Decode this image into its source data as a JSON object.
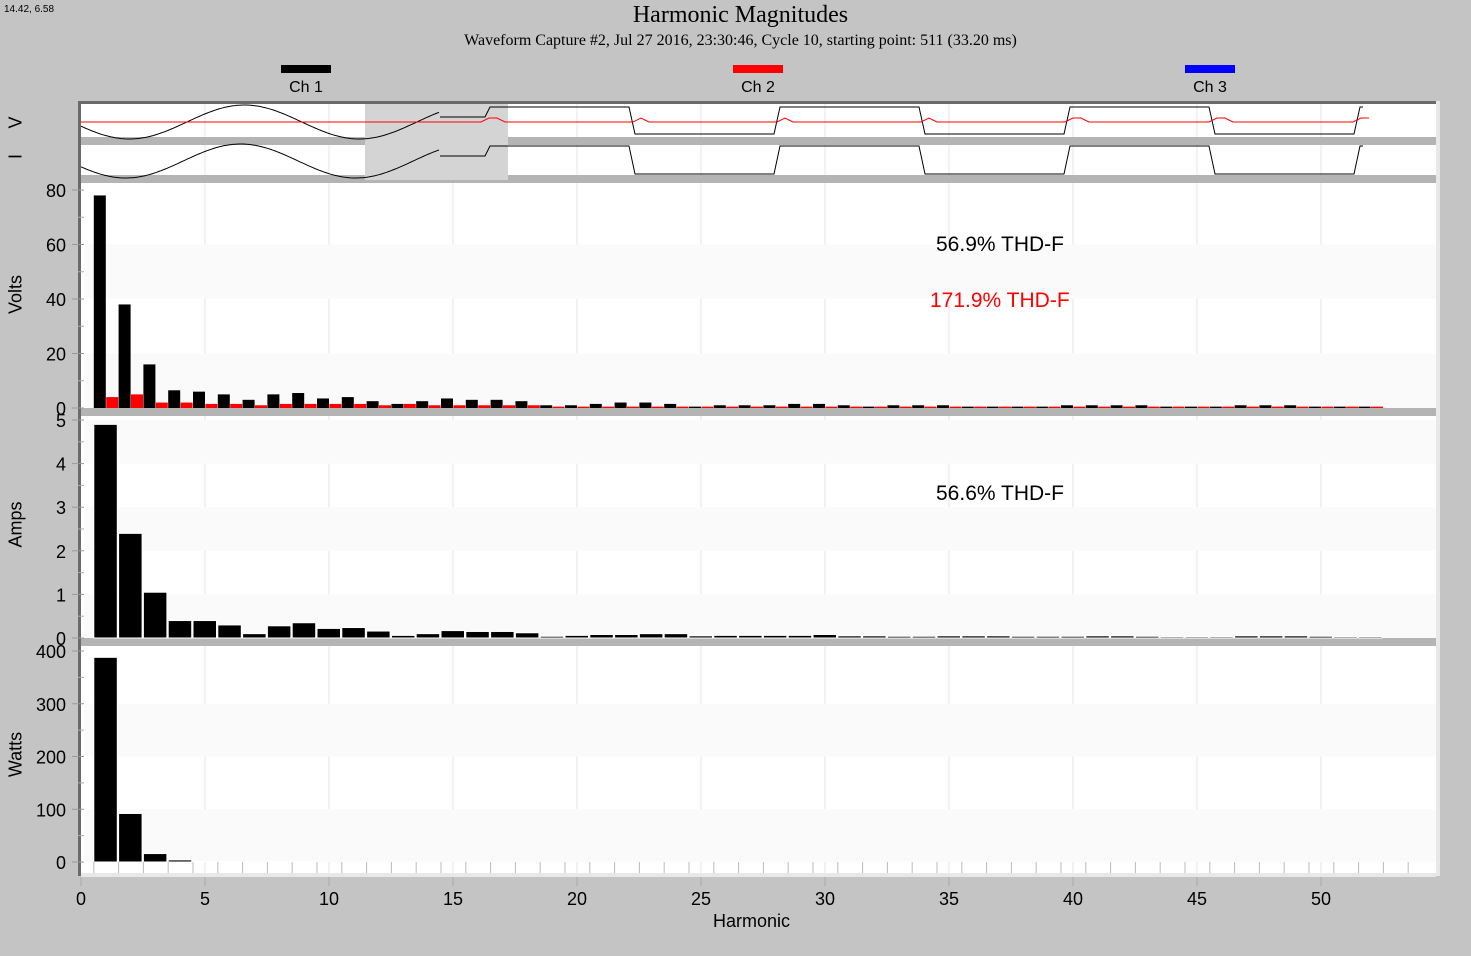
{
  "header": {
    "cursor_coords": "14.42, 6.58",
    "title": "Harmonic Magnitudes",
    "subtitle": "Waveform Capture #2, Jul 27 2016, 23:30:46, Cycle 10,  starting point: 511  (33.20 ms)"
  },
  "legend": [
    {
      "label": "Ch 1",
      "color": "#000000"
    },
    {
      "label": "Ch 2",
      "color": "#ff0000"
    },
    {
      "label": "Ch 3",
      "color": "#0000ff"
    }
  ],
  "waveform_strip": {
    "v_label": "V",
    "i_label": "I"
  },
  "panels": {
    "volts": {
      "ylabel": "Volts",
      "thd_ch1": "56.9% THD-F",
      "thd_ch2": "171.9% THD-F"
    },
    "amps": {
      "ylabel": "Amps",
      "thd_ch1": "56.6% THD-F"
    },
    "watts": {
      "ylabel": "Watts"
    }
  },
  "xaxis": {
    "label": "Harmonic"
  },
  "colors": {
    "ch1": "#000000",
    "ch2": "#ff0000",
    "ch3": "#0000ff",
    "background": "#c4c4c4",
    "band": "#b4b4b4"
  },
  "chart_data": [
    {
      "type": "bar",
      "title": "Harmonic Magnitudes - Volts",
      "xlabel": "Harmonic",
      "ylabel": "Volts",
      "ylim": [
        0,
        80
      ],
      "yticks": [
        0,
        20,
        40,
        60,
        80
      ],
      "xticks": [
        0,
        5,
        10,
        15,
        20,
        25,
        30,
        35,
        40,
        45,
        50
      ],
      "xlim": [
        0,
        55
      ],
      "grid": true,
      "annotations": [
        "56.9% THD-F",
        "171.9% THD-F"
      ],
      "categories": [
        1,
        2,
        3,
        4,
        5,
        6,
        7,
        8,
        9,
        10,
        11,
        12,
        13,
        14,
        15,
        16,
        17,
        18,
        19,
        20,
        21,
        22,
        23,
        24,
        25,
        26,
        27,
        28,
        29,
        30,
        31,
        32,
        33,
        34,
        35,
        36,
        37,
        38,
        39,
        40,
        41,
        42,
        43,
        44,
        45,
        46,
        47,
        48,
        49,
        50,
        51,
        52
      ],
      "series": [
        {
          "name": "Ch 1",
          "color": "#000000",
          "values": [
            78,
            38,
            16,
            6.5,
            6,
            5,
            3,
            5,
            5.5,
            3.5,
            4,
            2.5,
            1.5,
            2.5,
            3.5,
            3,
            3,
            2.5,
            1,
            1,
            1.5,
            2,
            2,
            1.5,
            0.5,
            1,
            1,
            1,
            1.5,
            1.5,
            1,
            0.5,
            1,
            1,
            1,
            0.5,
            0.5,
            0.5,
            0.5,
            1,
            1,
            1,
            1,
            0.5,
            0.5,
            0.5,
            1,
            1,
            1,
            0.5,
            0.5,
            0.5
          ]
        },
        {
          "name": "Ch 2",
          "color": "#ff0000",
          "values": [
            4,
            5,
            2,
            2,
            1.5,
            1.5,
            1,
            1.5,
            1.5,
            1.5,
            1.5,
            1,
            1.5,
            1,
            1,
            1,
            1,
            1,
            0.5,
            0.5,
            0.5,
            0.5,
            0.5,
            0.5,
            0.5,
            0.5,
            0.5,
            0.5,
            0.5,
            0.5,
            0.5,
            0.5,
            0.5,
            0.5,
            0.5,
            0.5,
            0.5,
            0.5,
            0.5,
            0.5,
            0.5,
            0.5,
            0.5,
            0.5,
            0.5,
            0.5,
            0.5,
            0.5,
            0.5,
            0.5,
            0.5,
            0.5
          ]
        }
      ]
    },
    {
      "type": "bar",
      "title": "Harmonic Magnitudes - Amps",
      "xlabel": "Harmonic",
      "ylabel": "Amps",
      "ylim": [
        0,
        5
      ],
      "yticks": [
        0,
        1,
        2,
        3,
        4,
        5
      ],
      "annotations": [
        "56.6% THD-F"
      ],
      "categories": [
        1,
        2,
        3,
        4,
        5,
        6,
        7,
        8,
        9,
        10,
        11,
        12,
        13,
        14,
        15,
        16,
        17,
        18,
        19,
        20,
        21,
        22,
        23,
        24,
        25,
        26,
        27,
        28,
        29,
        30,
        31,
        32,
        33,
        34,
        35,
        36,
        37,
        38,
        39,
        40,
        41,
        42,
        43,
        44,
        45,
        46,
        47,
        48,
        49,
        50,
        51,
        52
      ],
      "series": [
        {
          "name": "Ch 1",
          "color": "#000000",
          "values": [
            4.9,
            2.4,
            1.05,
            0.4,
            0.4,
            0.3,
            0.1,
            0.28,
            0.35,
            0.22,
            0.24,
            0.16,
            0.06,
            0.1,
            0.17,
            0.15,
            0.15,
            0.12,
            0.04,
            0.06,
            0.08,
            0.08,
            0.1,
            0.1,
            0.05,
            0.06,
            0.06,
            0.06,
            0.06,
            0.08,
            0.05,
            0.05,
            0.04,
            0.04,
            0.05,
            0.05,
            0.05,
            0.04,
            0.04,
            0.04,
            0.05,
            0.05,
            0.04,
            0.03,
            0.03,
            0.03,
            0.05,
            0.05,
            0.05,
            0.04,
            0.03,
            0.03
          ]
        }
      ]
    },
    {
      "type": "bar",
      "title": "Harmonic Magnitudes - Watts",
      "xlabel": "Harmonic",
      "ylabel": "Watts",
      "ylim": [
        0,
        400
      ],
      "yticks": [
        0,
        100,
        200,
        300,
        400
      ],
      "categories": [
        1,
        2,
        3,
        4,
        5,
        6,
        7,
        8,
        9
      ],
      "series": [
        {
          "name": "Ch 1",
          "color": "#000000",
          "values": [
            388,
            92,
            16,
            4,
            1,
            1,
            0,
            1,
            1
          ]
        }
      ]
    }
  ]
}
